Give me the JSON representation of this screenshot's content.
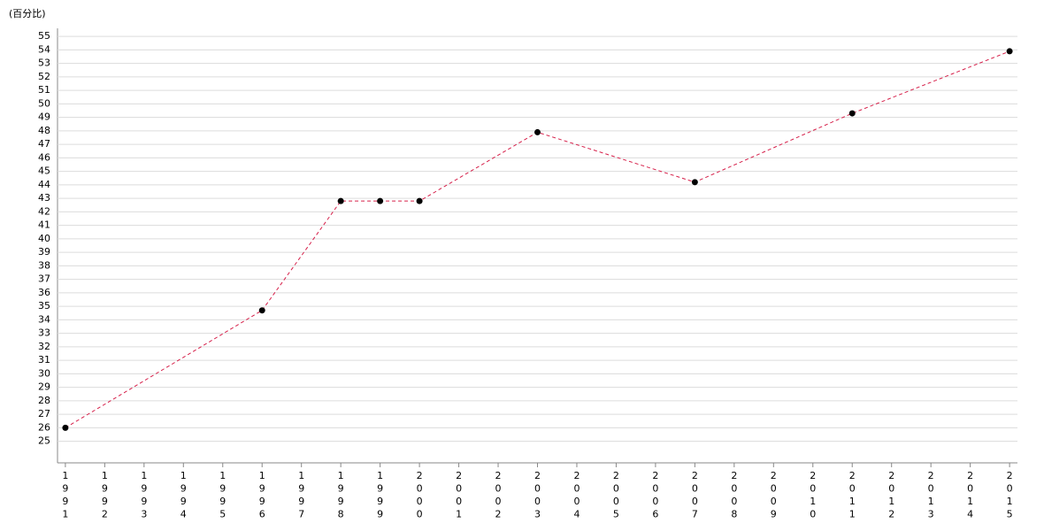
{
  "chart_data": {
    "type": "line",
    "y_label": "(百分比)",
    "x": [
      1991,
      1996,
      1998,
      1999,
      2000,
      2003,
      2007,
      2011,
      2015
    ],
    "series": [
      {
        "color": "#d6204a",
        "marker_color": "#000000",
        "values": [
          26,
          34.7,
          42.8,
          42.8,
          42.8,
          47.9,
          44.2,
          49.3,
          53.9
        ]
      }
    ],
    "xlim": [
      1990.8,
      2015.2
    ],
    "xticks": [
      1991,
      1992,
      1993,
      1994,
      1995,
      1996,
      1997,
      1998,
      1999,
      2000,
      2001,
      2002,
      2003,
      2004,
      2005,
      2006,
      2007,
      2008,
      2009,
      2010,
      2011,
      2012,
      2013,
      2014,
      2015
    ],
    "ylim": [
      23.4,
      55.6
    ],
    "yticks": [
      25,
      26,
      27,
      28,
      29,
      30,
      31,
      32,
      33,
      34,
      35,
      36,
      37,
      38,
      39,
      40,
      41,
      42,
      43,
      44,
      45,
      46,
      47,
      48,
      49,
      50,
      51,
      52,
      53,
      54,
      55
    ],
    "grid": true,
    "line_style": "dashed"
  }
}
